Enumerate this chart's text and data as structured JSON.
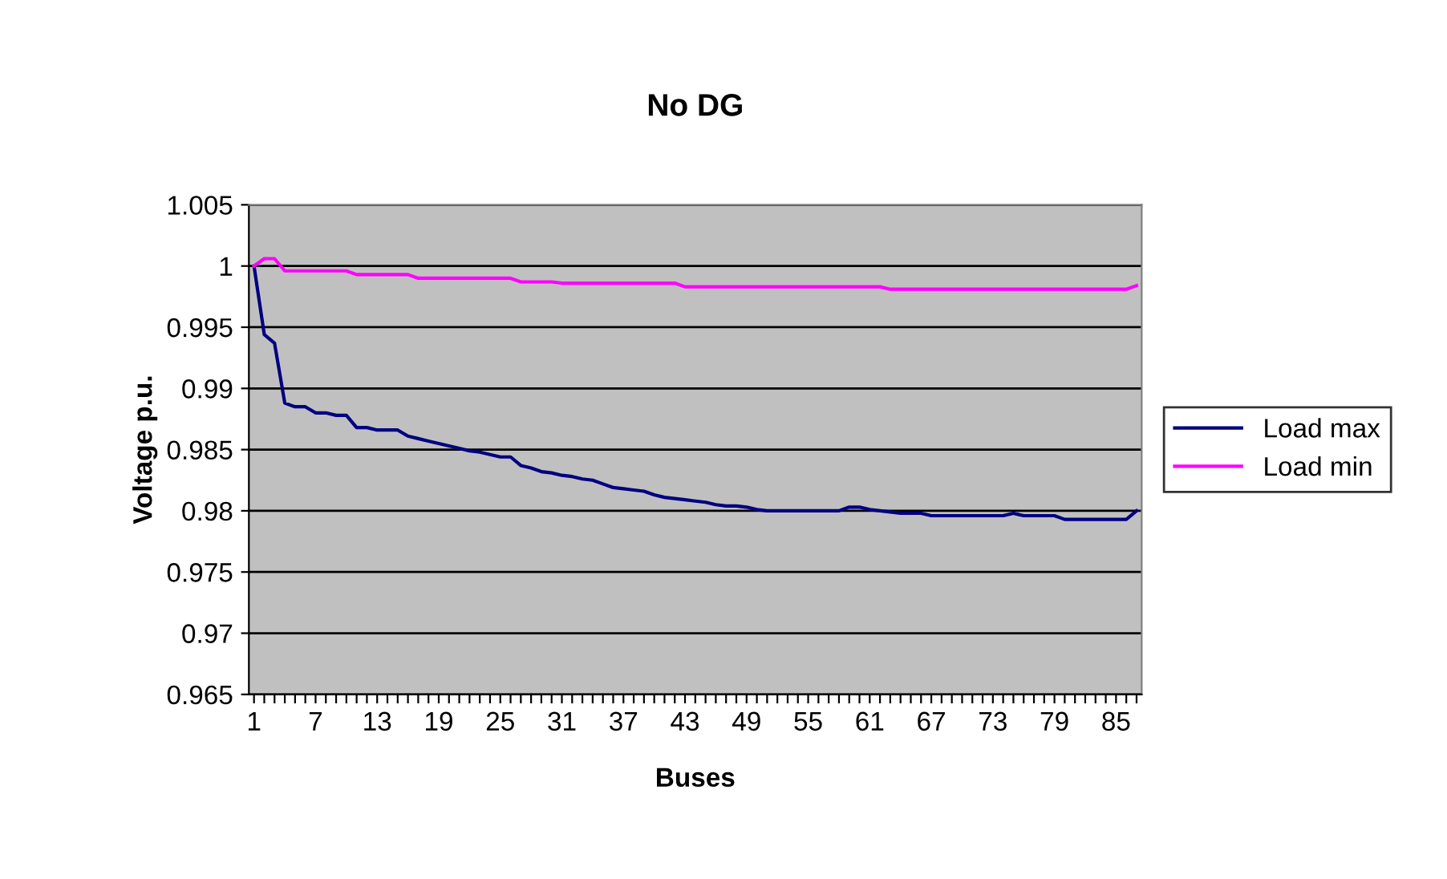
{
  "chart_data": {
    "type": "line",
    "title": "No DG",
    "xlabel": "Buses",
    "ylabel": "Voltage p.u.",
    "categories": [
      "1",
      null,
      null,
      null,
      null,
      null,
      "7",
      null,
      null,
      null,
      null,
      null,
      "13",
      null,
      null,
      null,
      null,
      null,
      "19",
      null,
      null,
      null,
      null,
      null,
      "25",
      null,
      null,
      null,
      null,
      null,
      "31",
      null,
      null,
      null,
      null,
      null,
      "37",
      null,
      null,
      null,
      null,
      null,
      "43",
      null,
      null,
      null,
      null,
      null,
      "49",
      null,
      null,
      null,
      null,
      null,
      "55",
      null,
      null,
      null,
      null,
      null,
      "61",
      null,
      null,
      null,
      null,
      null,
      "67",
      null,
      null,
      null,
      null,
      null,
      "73",
      null,
      null,
      null,
      null,
      null,
      "79",
      null,
      null,
      null,
      null,
      null,
      "85",
      null,
      null
    ],
    "series": [
      {
        "name": "Load max",
        "color": "#000080",
        "values": [
          1.0,
          0.9944,
          0.9937,
          0.9888,
          0.9885,
          0.9885,
          0.988,
          0.988,
          0.9878,
          0.9878,
          0.9868,
          0.9868,
          0.9866,
          0.9866,
          0.9866,
          0.9861,
          0.9859,
          0.9857,
          0.9855,
          0.9853,
          0.9851,
          0.9849,
          0.9848,
          0.9846,
          0.9844,
          0.9844,
          0.9837,
          0.9835,
          0.9832,
          0.9831,
          0.9829,
          0.9828,
          0.9826,
          0.9825,
          0.9822,
          0.9819,
          0.9818,
          0.9817,
          0.9816,
          0.9813,
          0.9811,
          0.981,
          0.9809,
          0.9808,
          0.9807,
          0.9805,
          0.9804,
          0.9804,
          0.9803,
          0.9801,
          0.98,
          0.98,
          0.98,
          0.98,
          0.98,
          0.98,
          0.98,
          0.98,
          0.9803,
          0.9803,
          0.9801,
          0.98,
          0.9799,
          0.9798,
          0.9798,
          0.9798,
          0.9796,
          0.9796,
          0.9796,
          0.9796,
          0.9796,
          0.9796,
          0.9796,
          0.9796,
          0.9798,
          0.9796,
          0.9796,
          0.9796,
          0.9796,
          0.9793,
          0.9793,
          0.9793,
          0.9793,
          0.9793,
          0.9793,
          0.9793,
          0.98
        ]
      },
      {
        "name": "Load min",
        "color": "#ff00ff",
        "values": [
          1.0,
          1.0006,
          1.0006,
          0.9996,
          0.9996,
          0.9996,
          0.9996,
          0.9996,
          0.9996,
          0.9996,
          0.9993,
          0.9993,
          0.9993,
          0.9993,
          0.9993,
          0.9993,
          0.999,
          0.999,
          0.999,
          0.999,
          0.999,
          0.999,
          0.999,
          0.999,
          0.999,
          0.999,
          0.9987,
          0.9987,
          0.9987,
          0.9987,
          0.9986,
          0.9986,
          0.9986,
          0.9986,
          0.9986,
          0.9986,
          0.9986,
          0.9986,
          0.9986,
          0.9986,
          0.9986,
          0.9986,
          0.9983,
          0.9983,
          0.9983,
          0.9983,
          0.9983,
          0.9983,
          0.9983,
          0.9983,
          0.9983,
          0.9983,
          0.9983,
          0.9983,
          0.9983,
          0.9983,
          0.9983,
          0.9983,
          0.9983,
          0.9983,
          0.9983,
          0.9983,
          0.9981,
          0.9981,
          0.9981,
          0.9981,
          0.9981,
          0.9981,
          0.9981,
          0.9981,
          0.9981,
          0.9981,
          0.9981,
          0.9981,
          0.9981,
          0.9981,
          0.9981,
          0.9981,
          0.9981,
          0.9981,
          0.9981,
          0.9981,
          0.9981,
          0.9981,
          0.9981,
          0.9981,
          0.9984
        ]
      }
    ],
    "ylim": [
      0.965,
      1.005
    ],
    "yticks": [
      0.965,
      0.97,
      0.975,
      0.98,
      0.985,
      0.99,
      0.995,
      1,
      1.005
    ],
    "grid": "y",
    "legend": "right",
    "marker": "none",
    "line_style": "solid"
  }
}
